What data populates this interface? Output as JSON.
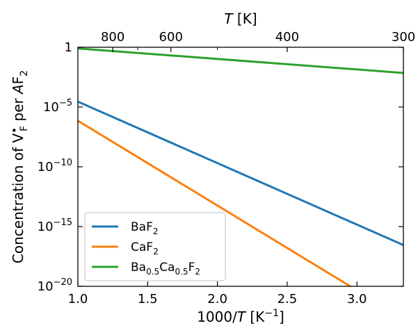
{
  "chart_data": {
    "type": "line",
    "xscale": "linear",
    "yscale": "log",
    "x": [
      1.0,
      3.333
    ],
    "xlim": [
      1.0,
      3.333
    ],
    "ylim": [
      1e-20,
      1
    ],
    "x_ticks": [
      1.0,
      1.5,
      2.0,
      2.5,
      3.0
    ],
    "x_tick_labels": [
      "1.0",
      "1.5",
      "2.0",
      "2.5",
      "3.0"
    ],
    "y_ticks": [
      1e-20,
      1e-15,
      1e-10,
      1e-05,
      1
    ],
    "y_tick_labels": [
      {
        "base": "10",
        "exp": "−20"
      },
      {
        "base": "10",
        "exp": "−15"
      },
      {
        "base": "10",
        "exp": "−10"
      },
      {
        "base": "10",
        "exp": "−5"
      },
      {
        "base": "1",
        "exp": ""
      }
    ],
    "top_axis": {
      "label": {
        "italic": "T",
        "rest": " [K]"
      },
      "ticks": [
        800,
        600,
        400,
        300
      ],
      "tick_labels": [
        "800",
        "600",
        "400",
        "300"
      ],
      "minor_ticks": [
        700,
        500
      ]
    },
    "xlabel": {
      "pre": "1000/",
      "italic": "T",
      "post": " [K",
      "sup": "−1",
      "end": "]"
    },
    "ylabel": {
      "pre": "Concentration of V",
      "sup": "•",
      "sub": "F",
      "mid": " per ",
      "italic": "A",
      "end": "F",
      "end_sub": "2"
    },
    "legend_position": "lower-left",
    "series": [
      {
        "name": {
          "main": "BaF",
          "sub1": "2"
        },
        "color": "#1f77b4",
        "x": [
          1.0,
          3.333
        ],
        "log10_y": [
          -4.55,
          -16.55
        ]
      },
      {
        "name": {
          "main": "CaF",
          "sub1": "2"
        },
        "color": "#ff7f0e",
        "x": [
          1.0,
          3.333
        ],
        "log10_y": [
          -6.15,
          -22.7
        ]
      },
      {
        "name": {
          "main": "Ba",
          "sub1": "0.5",
          "mid": "Ca",
          "sub2": "0.5",
          "end": "F",
          "sub3": "2"
        },
        "color": "#2ca02c",
        "x": [
          1.0,
          3.333
        ],
        "log10_y": [
          -0.1,
          -2.15
        ]
      }
    ],
    "grid": false
  }
}
